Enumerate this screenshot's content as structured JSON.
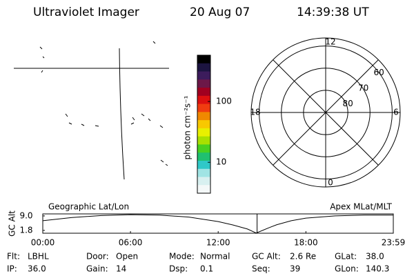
{
  "header": {
    "title": "Ultraviolet Imager",
    "date": "20 Aug 07",
    "time": "14:39:38 UT"
  },
  "colorbar": {
    "label": "photon cm⁻²s⁻¹",
    "log": true,
    "ylim": [
      3.1,
      577
    ],
    "yticks": [
      10,
      100
    ],
    "colors": [
      "#000000",
      "#1c1440",
      "#3c1c5c",
      "#6c1848",
      "#a00020",
      "#dc1010",
      "#f03c10",
      "#f08800",
      "#f8c800",
      "#e8f000",
      "#a8e000",
      "#48d020",
      "#20c070",
      "#30c8c8",
      "#a0e4e4",
      "#d8f0f0",
      "#f4f8f8"
    ]
  },
  "polar": {
    "lat_lim": [
      90,
      56.4
    ],
    "lat_rings": [
      80,
      70,
      60
    ],
    "mlt_ticks": [
      12,
      6,
      0,
      18
    ]
  },
  "timeline": {
    "left_label": "Geographic Lat/Lon",
    "right_label": "Apex MLat/MLT",
    "ylabel": "GC Alt",
    "xlim": [
      0,
      23.98
    ],
    "ylim": [
      0.4,
      10
    ],
    "xticks": [
      {
        "value": 0,
        "label": "00:00"
      },
      {
        "value": 6,
        "label": "06:00"
      },
      {
        "value": 12,
        "label": "12:00"
      },
      {
        "value": 18,
        "label": "18:00"
      },
      {
        "value": 23.98,
        "label": "23:59"
      }
    ],
    "yticks": [
      {
        "value": 9,
        "label": "9.0"
      },
      {
        "value": 1.8,
        "label": "1.8"
      }
    ],
    "x": [
      0,
      2,
      4,
      6,
      8,
      10,
      12,
      13,
      14,
      14.6,
      15.5,
      16,
      17,
      18,
      20,
      22,
      23.98
    ],
    "values": [
      6.6,
      8.2,
      9.2,
      9.6,
      9.4,
      8.4,
      6.2,
      4.5,
      2.5,
      0.5,
      3.2,
      4.6,
      6.6,
      7.9,
      9.0,
      9.4,
      9.4
    ]
  },
  "footer": [
    [
      {
        "label": "Flt:",
        "value": "LBHL"
      },
      {
        "label": "Door:",
        "value": "Open"
      },
      {
        "label": "Mode:",
        "value": "Normal"
      },
      {
        "label": "GC Alt:",
        "value": "2.6 Re"
      },
      {
        "label": "GLat:",
        "value": "38.0"
      }
    ],
    [
      {
        "label": "IP:",
        "value": "36.0"
      },
      {
        "label": "Gain:",
        "value": "14"
      },
      {
        "label": "Dsp:",
        "value": "0.1"
      },
      {
        "label": "Seq:",
        "value": "39"
      },
      {
        "label": "GLon:",
        "value": "140.3"
      }
    ]
  ]
}
